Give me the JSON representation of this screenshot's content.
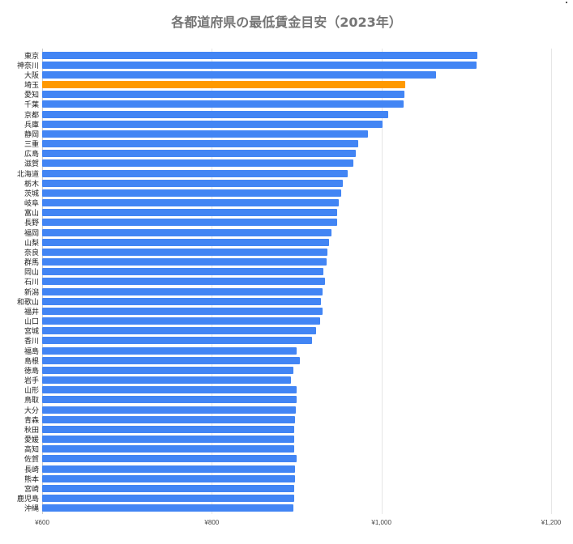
{
  "chart_data": {
    "type": "bar",
    "orientation": "horizontal",
    "title": "各都道府県の最低賃金目安（2023年）",
    "xlabel": "",
    "ylabel": "",
    "xlim": [
      600,
      1200
    ],
    "x_ticks": [
      "¥600",
      "¥800",
      "¥1,000",
      "¥1,200"
    ],
    "x_tick_values": [
      600,
      800,
      1000,
      1200
    ],
    "grid": true,
    "legend": "none",
    "colors": {
      "default": "#4285f4",
      "highlight": "#ff9900"
    },
    "highlight_category": "埼玉",
    "categories": [
      "東京",
      "神奈川",
      "大阪",
      "埼玉",
      "愛知",
      "千葉",
      "京都",
      "兵庫",
      "静岡",
      "三重",
      "広島",
      "滋賀",
      "北海道",
      "栃木",
      "茨城",
      "岐阜",
      "富山",
      "長野",
      "福岡",
      "山梨",
      "奈良",
      "群馬",
      "岡山",
      "石川",
      "新潟",
      "和歌山",
      "福井",
      "山口",
      "宮城",
      "香川",
      "福島",
      "島根",
      "徳島",
      "岩手",
      "山形",
      "鳥取",
      "大分",
      "青森",
      "秋田",
      "愛媛",
      "高知",
      "佐賀",
      "長崎",
      "熊本",
      "宮崎",
      "鹿児島",
      "沖縄"
    ],
    "values": [
      1113,
      1112,
      1064,
      1028,
      1027,
      1026,
      1008,
      1001,
      984,
      973,
      970,
      967,
      960,
      954,
      953,
      950,
      948,
      948,
      941,
      938,
      936,
      935,
      932,
      933,
      931,
      929,
      931,
      928,
      923,
      918,
      900,
      904,
      896,
      893,
      900,
      900,
      899,
      898,
      897,
      897,
      897,
      900,
      898,
      898,
      897,
      897,
      896
    ]
  }
}
